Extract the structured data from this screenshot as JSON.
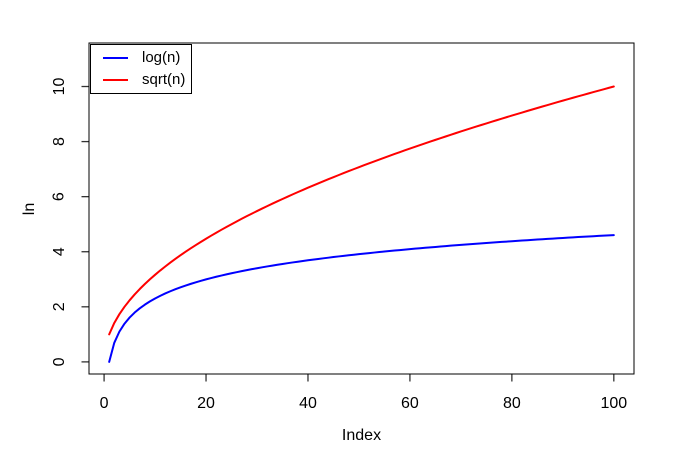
{
  "figure": {
    "background": "#ffffff",
    "frame_color": "#000000",
    "tick_color": "#333333"
  },
  "legend": {
    "position": "topleft"
  },
  "chart_data": {
    "type": "line",
    "title": "",
    "xlabel": "Index",
    "ylabel": "ln",
    "x_ticks": [
      0,
      20,
      40,
      60,
      80,
      100
    ],
    "y_ticks": [
      0,
      2,
      4,
      6,
      8,
      10
    ],
    "xlim": [
      -2.96,
      103.96
    ],
    "ylim": [
      -0.44,
      11.58
    ],
    "grid": false,
    "legend_position": "topleft",
    "line_width": 2,
    "x": [
      1,
      2,
      3,
      4,
      5,
      6,
      7,
      8,
      9,
      10,
      11,
      12,
      13,
      14,
      15,
      16,
      17,
      18,
      19,
      20,
      21,
      22,
      23,
      24,
      25,
      26,
      27,
      28,
      29,
      30,
      31,
      32,
      33,
      34,
      35,
      36,
      37,
      38,
      39,
      40,
      41,
      42,
      43,
      44,
      45,
      46,
      47,
      48,
      49,
      50,
      51,
      52,
      53,
      54,
      55,
      56,
      57,
      58,
      59,
      60,
      61,
      62,
      63,
      64,
      65,
      66,
      67,
      68,
      69,
      70,
      71,
      72,
      73,
      74,
      75,
      76,
      77,
      78,
      79,
      80,
      81,
      82,
      83,
      84,
      85,
      86,
      87,
      88,
      89,
      90,
      91,
      92,
      93,
      94,
      95,
      96,
      97,
      98,
      99,
      100
    ],
    "series": [
      {
        "name": "log(n)",
        "color": "#0000ff",
        "values": [
          0,
          0.693,
          1.099,
          1.386,
          1.609,
          1.792,
          1.946,
          2.079,
          2.197,
          2.303,
          2.398,
          2.485,
          2.565,
          2.639,
          2.708,
          2.773,
          2.833,
          2.89,
          2.944,
          2.996,
          3.045,
          3.091,
          3.135,
          3.178,
          3.219,
          3.258,
          3.296,
          3.332,
          3.367,
          3.401,
          3.434,
          3.466,
          3.497,
          3.526,
          3.555,
          3.584,
          3.611,
          3.638,
          3.664,
          3.689,
          3.714,
          3.738,
          3.761,
          3.784,
          3.807,
          3.829,
          3.85,
          3.871,
          3.892,
          3.912,
          3.932,
          3.951,
          3.97,
          3.989,
          4.007,
          4.025,
          4.043,
          4.06,
          4.078,
          4.094,
          4.111,
          4.127,
          4.143,
          4.159,
          4.174,
          4.19,
          4.205,
          4.22,
          4.234,
          4.248,
          4.263,
          4.277,
          4.29,
          4.304,
          4.317,
          4.331,
          4.344,
          4.357,
          4.369,
          4.382,
          4.394,
          4.407,
          4.419,
          4.431,
          4.443,
          4.454,
          4.466,
          4.477,
          4.489,
          4.5,
          4.511,
          4.522,
          4.533,
          4.543,
          4.554,
          4.564,
          4.575,
          4.585,
          4.595,
          4.605
        ]
      },
      {
        "name": "sqrt(n)",
        "color": "#ff0000",
        "values": [
          1,
          1.414,
          1.732,
          2,
          2.236,
          2.449,
          2.646,
          2.828,
          3,
          3.162,
          3.317,
          3.464,
          3.606,
          3.742,
          3.873,
          4,
          4.123,
          4.243,
          4.359,
          4.472,
          4.583,
          4.69,
          4.796,
          4.899,
          5,
          5.099,
          5.196,
          5.292,
          5.385,
          5.477,
          5.568,
          5.657,
          5.745,
          5.831,
          5.916,
          6,
          6.083,
          6.164,
          6.245,
          6.325,
          6.403,
          6.481,
          6.557,
          6.633,
          6.708,
          6.782,
          6.856,
          6.928,
          7,
          7.071,
          7.141,
          7.211,
          7.28,
          7.348,
          7.416,
          7.483,
          7.55,
          7.616,
          7.681,
          7.746,
          7.81,
          7.874,
          7.937,
          8,
          8.062,
          8.124,
          8.185,
          8.246,
          8.307,
          8.367,
          8.426,
          8.485,
          8.544,
          8.602,
          8.66,
          8.718,
          8.775,
          8.832,
          8.888,
          8.944,
          9,
          9.055,
          9.11,
          9.165,
          9.22,
          9.274,
          9.327,
          9.381,
          9.434,
          9.487,
          9.539,
          9.592,
          9.644,
          9.695,
          9.747,
          9.798,
          9.849,
          9.899,
          9.95,
          10
        ]
      }
    ]
  }
}
